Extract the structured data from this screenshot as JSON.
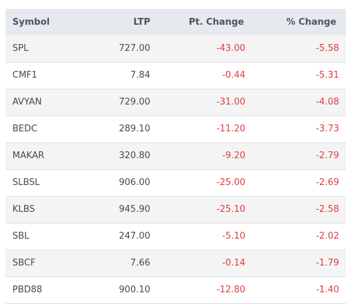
{
  "table": {
    "headers": {
      "symbol": "Symbol",
      "ltp": "LTP",
      "pt_change": "Pt. Change",
      "pct_change": "% Change"
    },
    "rows": [
      {
        "symbol": "SPL",
        "ltp": "727.00",
        "pt_change": "-43.00",
        "pct_change": "-5.58"
      },
      {
        "symbol": "CMF1",
        "ltp": "7.84",
        "pt_change": "-0.44",
        "pct_change": "-5.31"
      },
      {
        "symbol": "AVYAN",
        "ltp": "729.00",
        "pt_change": "-31.00",
        "pct_change": "-4.08"
      },
      {
        "symbol": "BEDC",
        "ltp": "289.10",
        "pt_change": "-11.20",
        "pct_change": "-3.73"
      },
      {
        "symbol": "MAKAR",
        "ltp": "320.80",
        "pt_change": "-9.20",
        "pct_change": "-2.79"
      },
      {
        "symbol": "SLBSL",
        "ltp": "906.00",
        "pt_change": "-25.00",
        "pct_change": "-2.69"
      },
      {
        "symbol": "KLBS",
        "ltp": "945.90",
        "pt_change": "-25.10",
        "pct_change": "-2.58"
      },
      {
        "symbol": "SBL",
        "ltp": "247.00",
        "pt_change": "-5.10",
        "pct_change": "-2.02"
      },
      {
        "symbol": "SBCF",
        "ltp": "7.66",
        "pt_change": "-0.14",
        "pct_change": "-1.79"
      },
      {
        "symbol": "PBD88",
        "ltp": "900.10",
        "pt_change": "-12.80",
        "pct_change": "-1.40"
      }
    ]
  },
  "colors": {
    "negative": "#e23b3b",
    "header_bg": "#e6e9ed"
  }
}
